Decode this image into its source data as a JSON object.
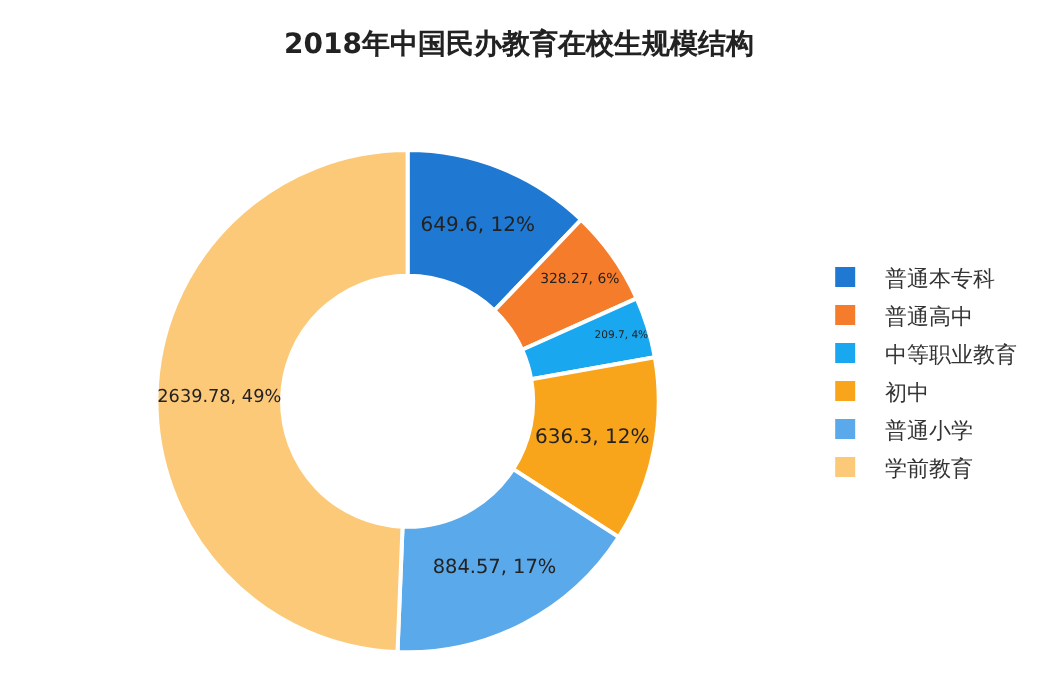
{
  "chart_data": {
    "type": "donut",
    "title": "2018年中国民办教育在校生规模结构",
    "categories": [
      "普通本专科",
      "普通高中",
      "中等职业教育",
      "初中",
      "普通小学",
      "学前教育"
    ],
    "values": [
      649.6,
      328.27,
      209.7,
      636.3,
      884.57,
      2639.78
    ],
    "colors": [
      "#1f78d1",
      "#f57c2a",
      "#19a8f0",
      "#f9a51c",
      "#5aa9ea",
      "#fcc978"
    ],
    "value_labels": [
      "649.6, 12%",
      "328.27, 6%",
      "209.7, 4%",
      "636.3, 12%",
      "884.57, 17%",
      "2639.78, 49%"
    ],
    "legend": "right"
  }
}
